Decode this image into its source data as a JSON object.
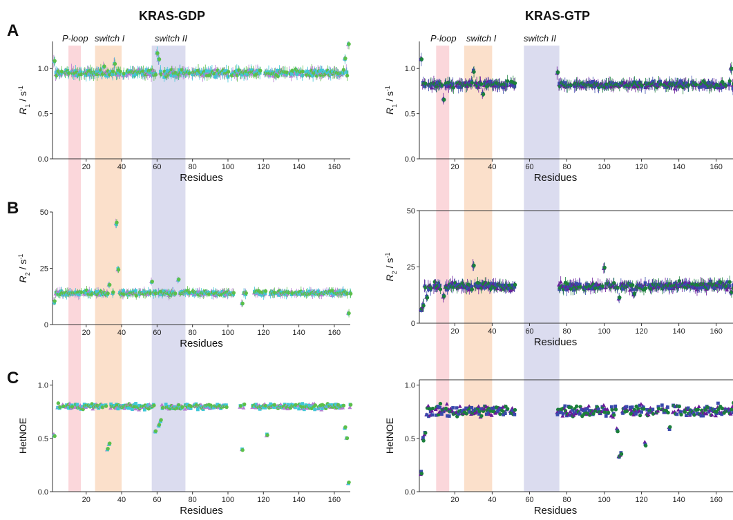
{
  "figure": {
    "columns": [
      {
        "title": "KRAS-GDP"
      },
      {
        "title": "KRAS-GTP"
      }
    ],
    "panel_letters": [
      "A",
      "B",
      "C"
    ],
    "region_labels": [
      "P-loop",
      "switch I",
      "switch II"
    ],
    "regions": [
      {
        "name": "P-loop",
        "start": 10,
        "end": 17,
        "color": "#f9c9cf"
      },
      {
        "name": "switch I",
        "start": 25,
        "end": 40,
        "color": "#fad6b9"
      },
      {
        "name": "switch II",
        "start": 57,
        "end": 76,
        "color": "#cfd0ea"
      }
    ],
    "y_titles": {
      "R1": {
        "main": "R",
        "sub": "1",
        "rest": " / s",
        "sup": "-1"
      },
      "R2": {
        "main": "R",
        "sub": "2",
        "rest": " / s",
        "sup": "-1"
      },
      "HetNOE": {
        "main": "HetNOE"
      }
    },
    "series_colors": {
      "GDP": [
        "#b57bd1",
        "#3ec7d6",
        "#5cbf4a"
      ],
      "GTP": [
        "#6a1b9a",
        "#3949ab",
        "#1b7f3b"
      ]
    }
  },
  "chart_data": [
    {
      "type": "scatter",
      "id": "A-GDP",
      "xlabel": "Residues",
      "ylabel": "R1 / s-1",
      "xlim": [
        1,
        169
      ],
      "ylim": [
        0,
        1.3
      ],
      "xticks": [
        20,
        40,
        60,
        80,
        100,
        120,
        140,
        160
      ],
      "yticks": [
        0.0,
        0.5,
        1.0
      ],
      "ytick_labels": [
        "0.0",
        "0.5",
        "1.0"
      ],
      "baseline": 0.95,
      "noise": 0.05,
      "missing": [],
      "specials": [
        [
          60,
          1.17
        ],
        [
          61,
          1.1
        ],
        [
          166,
          1.1
        ],
        [
          168,
          1.27
        ],
        [
          2,
          1.08
        ],
        [
          30,
          1.02
        ],
        [
          36,
          1.05
        ]
      ],
      "error_bar": 0.05
    },
    {
      "type": "scatter",
      "id": "A-GTP",
      "xlabel": "Residues",
      "ylabel": "R1 / s-1",
      "xlim": [
        1,
        169
      ],
      "ylim": [
        0,
        1.3
      ],
      "xticks": [
        20,
        40,
        60,
        80,
        100,
        120,
        140,
        160
      ],
      "yticks": [
        0.0,
        0.5,
        1.0
      ],
      "ytick_labels": [
        "0.0",
        "0.5",
        "1.0"
      ],
      "baseline": 0.82,
      "noise": 0.05,
      "missing": [
        [
          53,
          74
        ]
      ],
      "specials": [
        [
          1,
          1.02
        ],
        [
          2,
          1.1
        ],
        [
          30,
          0.97
        ],
        [
          35,
          0.72
        ],
        [
          75,
          0.95
        ],
        [
          168,
          1.0
        ],
        [
          14,
          0.66
        ]
      ],
      "error_bar": 0.05
    },
    {
      "type": "scatter",
      "id": "B-GDP",
      "xlabel": "Residues",
      "ylabel": "R2 / s-1",
      "xlim": [
        1,
        169
      ],
      "ylim": [
        0,
        50
      ],
      "xticks": [
        20,
        40,
        60,
        80,
        100,
        120,
        140,
        160
      ],
      "yticks": [
        0,
        25,
        50
      ],
      "ytick_labels": [
        "0",
        "25",
        "50"
      ],
      "baseline": 14,
      "noise": 1.4,
      "missing": [
        [
          104,
          107
        ],
        [
          111,
          114
        ]
      ],
      "specials": [
        [
          37,
          45
        ],
        [
          36,
          26
        ],
        [
          38,
          24.5
        ],
        [
          34,
          18
        ],
        [
          33,
          17.5
        ],
        [
          57,
          19
        ],
        [
          72,
          20
        ],
        [
          2,
          10
        ],
        [
          168,
          5
        ],
        [
          108,
          9.5
        ],
        [
          122,
          11
        ]
      ],
      "error_bar": 1.5
    },
    {
      "type": "scatter",
      "id": "B-GTP",
      "xlabel": "Residues",
      "ylabel": "R2 / s-1",
      "xlim": [
        1,
        169
      ],
      "ylim": [
        0,
        50
      ],
      "xticks": [
        20,
        40,
        60,
        80,
        100,
        120,
        140,
        160
      ],
      "yticks": [
        0,
        25,
        50
      ],
      "ytick_labels": [
        "0",
        "25",
        "50"
      ],
      "baseline": 16.5,
      "noise": 2.4,
      "missing": [
        [
          53,
          74
        ]
      ],
      "specials": [
        [
          2,
          6
        ],
        [
          3,
          8
        ],
        [
          5,
          12
        ],
        [
          14,
          12
        ],
        [
          30,
          26
        ],
        [
          74,
          23
        ],
        [
          100,
          25
        ],
        [
          108,
          11
        ],
        [
          116,
          13
        ],
        [
          168,
          14
        ]
      ],
      "error_bar": 2.0
    },
    {
      "type": "scatter",
      "id": "C-GDP",
      "xlabel": "Residues",
      "ylabel": "HetNOE",
      "xlim": [
        1,
        169
      ],
      "ylim": [
        0,
        1.05
      ],
      "xticks": [
        20,
        40,
        60,
        80,
        100,
        120,
        140,
        160
      ],
      "yticks": [
        0.0,
        0.5,
        1.0
      ],
      "ytick_labels": [
        "0.0",
        "0.5",
        "1.0"
      ],
      "baseline": 0.8,
      "noise": 0.04,
      "missing": [
        [
          100,
          106
        ],
        [
          110,
          113
        ]
      ],
      "specials": [
        [
          2,
          0.53
        ],
        [
          3,
          0.62
        ],
        [
          32,
          0.4
        ],
        [
          33,
          0.45
        ],
        [
          59,
          0.57
        ],
        [
          60,
          0.6
        ],
        [
          61,
          0.62
        ],
        [
          62,
          0.67
        ],
        [
          108,
          0.39
        ],
        [
          122,
          0.53
        ],
        [
          166,
          0.6
        ],
        [
          168,
          0.08
        ],
        [
          167,
          0.5
        ]
      ],
      "error_bar": 0
    },
    {
      "type": "scatter",
      "id": "C-GTP",
      "xlabel": "Residues",
      "ylabel": "HetNOE",
      "xlim": [
        1,
        169
      ],
      "ylim": [
        0,
        1.05
      ],
      "xticks": [
        20,
        40,
        60,
        80,
        100,
        120,
        140,
        160
      ],
      "yticks": [
        0.0,
        0.5,
        1.0
      ],
      "ytick_labels": [
        "0.0",
        "0.5",
        "1.0"
      ],
      "baseline": 0.76,
      "noise": 0.08,
      "missing": [
        [
          53,
          74
        ]
      ],
      "specials": [
        [
          1,
          0.1
        ],
        [
          2,
          0.18
        ],
        [
          3,
          0.5
        ],
        [
          4,
          0.55
        ],
        [
          107,
          0.58
        ],
        [
          108,
          0.33
        ],
        [
          109,
          0.35
        ],
        [
          122,
          0.45
        ],
        [
          135,
          0.6
        ],
        [
          170,
          0.45
        ]
      ],
      "error_bar": 0
    }
  ]
}
